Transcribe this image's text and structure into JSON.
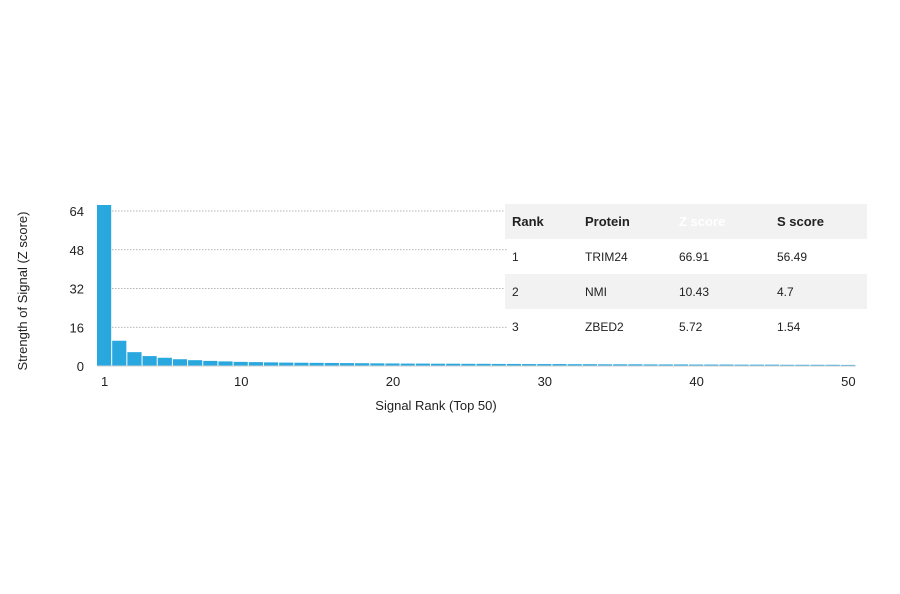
{
  "chart_data": {
    "type": "bar",
    "xlabel": "Signal Rank (Top 50)",
    "ylabel": "Strength of Signal (Z score)",
    "ylim": [
      0,
      64
    ],
    "yticks": [
      0,
      16,
      32,
      48,
      64
    ],
    "xticks": [
      1,
      10,
      20,
      30,
      40,
      50
    ],
    "x": [
      1,
      2,
      3,
      4,
      5,
      6,
      7,
      8,
      9,
      10,
      11,
      12,
      13,
      14,
      15,
      16,
      17,
      18,
      19,
      20,
      21,
      22,
      23,
      24,
      25,
      26,
      27,
      28,
      29,
      30,
      31,
      32,
      33,
      34,
      35,
      36,
      37,
      38,
      39,
      40,
      41,
      42,
      43,
      44,
      45,
      46,
      47,
      48,
      49,
      50
    ],
    "values": [
      66.91,
      10.43,
      5.72,
      4.1,
      3.4,
      2.8,
      2.4,
      2.1,
      1.9,
      1.7,
      1.6,
      1.5,
      1.4,
      1.35,
      1.3,
      1.25,
      1.2,
      1.15,
      1.1,
      1.05,
      1.0,
      1.0,
      0.95,
      0.95,
      0.9,
      0.9,
      0.85,
      0.85,
      0.8,
      0.8,
      0.8,
      0.75,
      0.75,
      0.7,
      0.7,
      0.7,
      0.65,
      0.65,
      0.65,
      0.6,
      0.6,
      0.6,
      0.55,
      0.55,
      0.55,
      0.5,
      0.5,
      0.5,
      0.5,
      0.45
    ],
    "bar_color": "#29a8e0",
    "grid": true
  },
  "table": {
    "headers": [
      "Rank",
      "Protein",
      "Z score",
      "S score"
    ],
    "highlight_color": "#29a8e0",
    "rows": [
      [
        "1",
        "TRIM24",
        "66.91",
        "56.49"
      ],
      [
        "2",
        "NMI",
        "10.43",
        "4.7"
      ],
      [
        "3",
        "ZBED2",
        "5.72",
        "1.54"
      ]
    ]
  }
}
